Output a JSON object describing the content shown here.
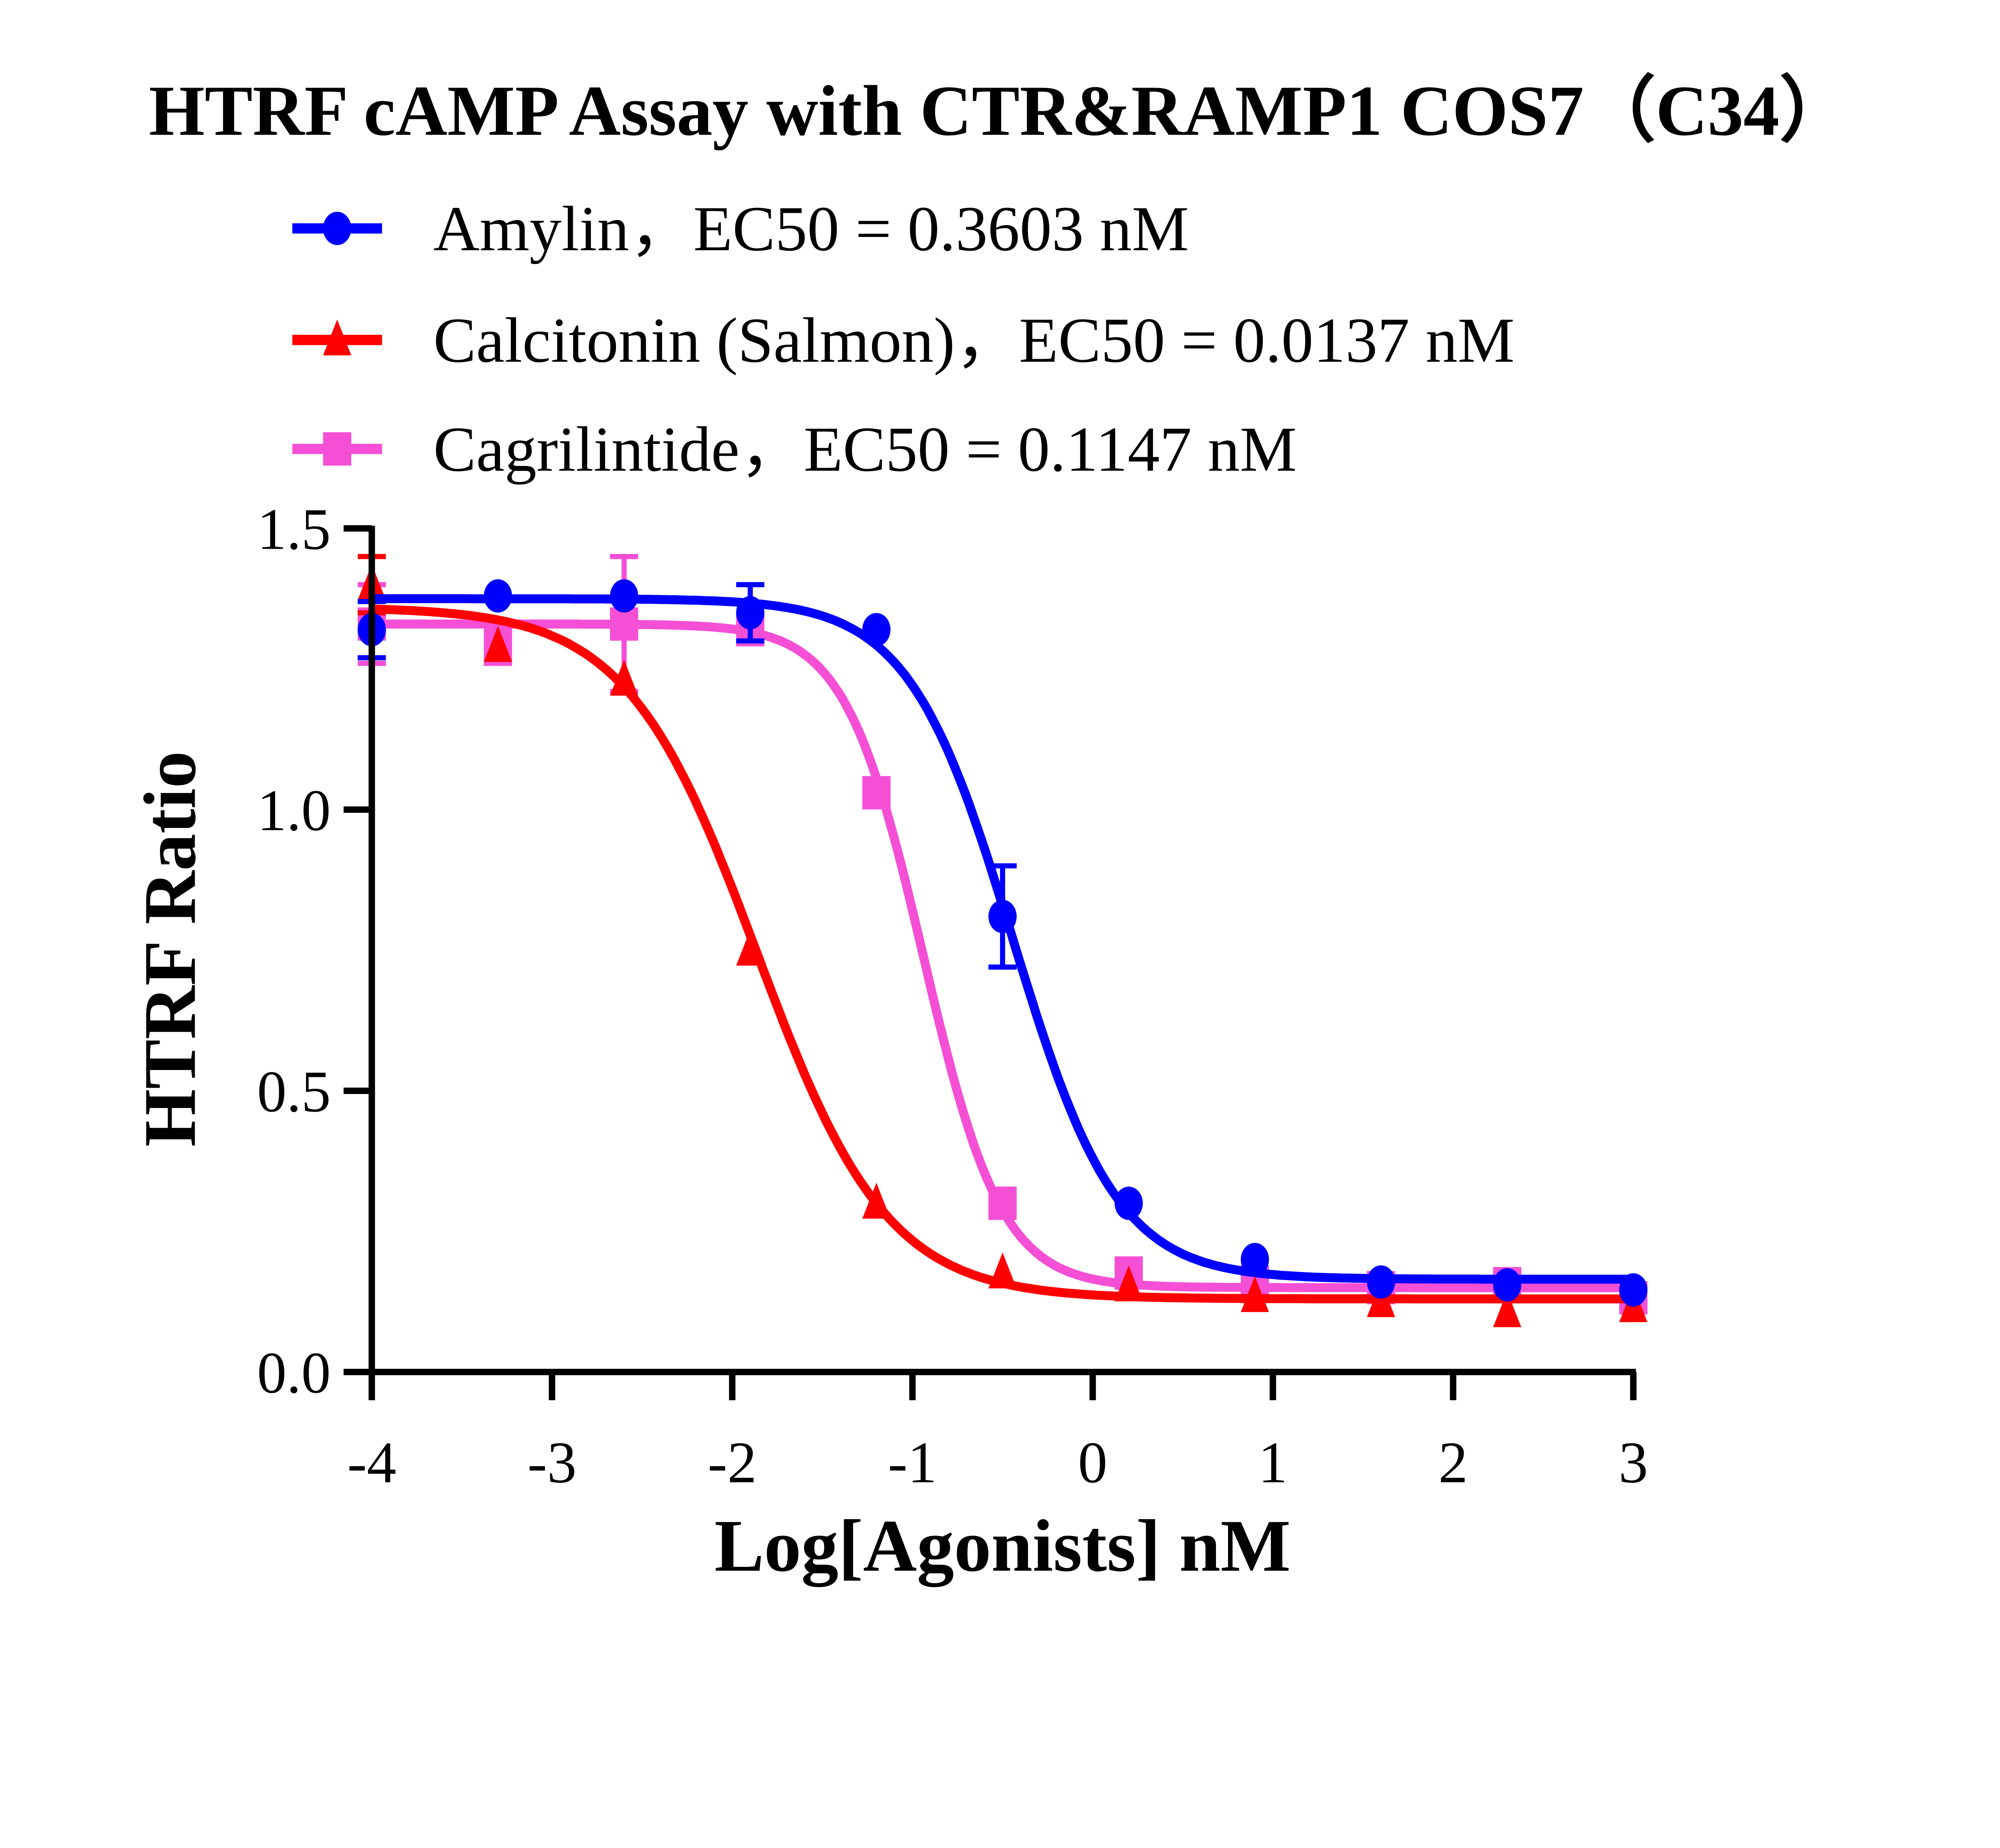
{
  "chart_data": {
    "type": "scatter",
    "title": "HTRF cAMP Assay with CTR&RAMP1 COS7（C34）",
    "xlabel": "Log[Agonists] nM",
    "ylabel": "HTRF Ratio",
    "xlim": [
      -4,
      3
    ],
    "ylim": [
      0,
      1.5
    ],
    "xticks": [
      -4,
      -3,
      -2,
      -1,
      0,
      1,
      2,
      3
    ],
    "xtick_labels": [
      "-4",
      "-3",
      "-2",
      "-1",
      "0",
      "1",
      "2",
      "3"
    ],
    "yticks": [
      0,
      0.5,
      1.0,
      1.5
    ],
    "ytick_labels": [
      "0.0",
      "0.5",
      "1.0",
      "1.5"
    ],
    "grid": false,
    "legend_position": "top",
    "x": [
      -4,
      -3.3,
      -2.6,
      -1.9,
      -1.2,
      -0.5,
      0.2,
      0.9,
      1.6,
      2.3,
      3
    ],
    "series": [
      {
        "name": "Amylin，EC50 = 0.3603 nM",
        "color": "#0000ff",
        "marker": "circle",
        "values": [
          1.32,
          1.38,
          1.38,
          1.35,
          1.32,
          0.81,
          0.3,
          0.2,
          0.16,
          0.155,
          0.146
        ],
        "errors": [
          0.05,
          0,
          0,
          0.05,
          0,
          0.09,
          0,
          0,
          0,
          0,
          0
        ],
        "fit": {
          "top": 1.375,
          "bottom": 0.165,
          "log_ec50": -0.443,
          "hill": -1.5
        }
      },
      {
        "name": "Calcitonin (Salmon)，EC50 = 0.0137 nM",
        "color": "#ff0000",
        "marker": "triangle",
        "values": [
          1.4,
          1.29,
          1.23,
          0.75,
          0.3,
          0.176,
          0.153,
          0.134,
          0.125,
          0.107,
          0.116
        ],
        "errors": [
          0.05,
          0,
          0,
          0,
          0,
          0,
          0,
          0,
          0,
          0,
          0
        ],
        "fit": {
          "top": 1.36,
          "bottom": 0.13,
          "log_ec50": -1.863,
          "hill": -1.2
        }
      },
      {
        "name": "Cagrilintide，EC50 = 0.1147 nM",
        "color": "#f54fd6",
        "marker": "square",
        "values": [
          1.33,
          1.29,
          1.33,
          1.32,
          1.03,
          0.3,
          0.176,
          0.16,
          0.15,
          0.157,
          0.132
        ],
        "errors": [
          0.07,
          0.03,
          0.12,
          0.02,
          0,
          0,
          0,
          0,
          0,
          0,
          0
        ],
        "fit": {
          "top": 1.33,
          "bottom": 0.15,
          "log_ec50": -0.94,
          "hill": -2.0
        }
      }
    ]
  }
}
